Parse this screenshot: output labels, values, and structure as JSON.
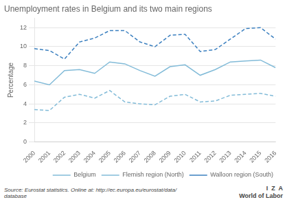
{
  "chart_data": {
    "type": "line",
    "title": "Unemployment rates in Belgium and its two main regions",
    "ylabel": "Percentage",
    "x": [
      2000,
      2001,
      2002,
      2003,
      2004,
      2005,
      2006,
      2007,
      2008,
      2009,
      2010,
      2011,
      2012,
      2013,
      2014,
      2015,
      2016
    ],
    "xlim": [
      2000,
      2016
    ],
    "xticks": [
      2000,
      2001,
      2002,
      2003,
      2004,
      2005,
      2006,
      2007,
      2008,
      2009,
      2010,
      2011,
      2012,
      2013,
      2014,
      2015,
      2016
    ],
    "ylim": [
      0,
      13
    ],
    "yticks": [
      0,
      2,
      4,
      6,
      8,
      10,
      12
    ],
    "grid": true,
    "legend": "lower right",
    "series": [
      {
        "name": "Belgium",
        "color": "#82bbd8",
        "line_style": "solid",
        "values": [
          6.4,
          6.0,
          7.5,
          7.6,
          7.2,
          8.4,
          8.2,
          7.5,
          6.9,
          7.9,
          8.1,
          7.0,
          7.6,
          8.4,
          8.5,
          8.6,
          7.8
        ]
      },
      {
        "name": "Flemish region (North)",
        "color": "#82bbd8",
        "line_style": "dashed",
        "values": [
          3.4,
          3.3,
          4.7,
          5.0,
          4.6,
          5.4,
          4.2,
          4.0,
          3.9,
          4.8,
          5.0,
          4.2,
          4.3,
          4.9,
          5.0,
          5.1,
          4.8
        ]
      },
      {
        "name": "Walloon region (South)",
        "color": "#3a7fbf",
        "line_style": "dashed",
        "values": [
          9.8,
          9.6,
          8.7,
          10.5,
          10.9,
          11.7,
          11.7,
          10.5,
          10.0,
          11.2,
          11.3,
          9.5,
          9.7,
          10.8,
          11.9,
          12.0,
          10.8
        ]
      }
    ],
    "annotations": [
      "Source: Eurostat statistics. Online at: http://ec.europa.eu/eurostat/data/\ndatabase",
      "I  Z  A",
      "World of Labor"
    ]
  }
}
